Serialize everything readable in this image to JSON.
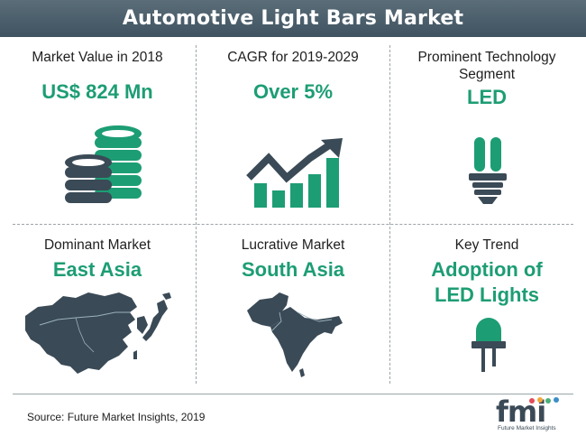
{
  "title": "Automotive Light Bars Market",
  "cells": [
    {
      "label": "Market Value in 2018",
      "value": "US$ 824 Mn",
      "icon": "coins-stack-icon"
    },
    {
      "label": "CAGR for 2019-2029",
      "value": "Over 5%",
      "icon": "growth-chart-icon"
    },
    {
      "label_line1": "Prominent Technology",
      "label_line2": "Segment",
      "value": "LED",
      "icon": "bulb-icon"
    },
    {
      "label": "Dominant Market",
      "value": "East Asia",
      "icon": "east-asia-map-icon"
    },
    {
      "label": "Lucrative Market",
      "value": "South Asia",
      "icon": "south-asia-map-icon"
    },
    {
      "label": "Key Trend",
      "value_line1": "Adoption of",
      "value_line2": "LED Lights",
      "icon": "led-diode-icon"
    }
  ],
  "source": "Source: Future Market Insights, 2019",
  "logo": {
    "text": "fmi",
    "tagline": "Future Market Insights"
  },
  "colors": {
    "accent": "#1d9d74",
    "banner": "#4a5e6b",
    "icon_dark": "#3a4a56",
    "icon_teal": "#1d9d74"
  }
}
